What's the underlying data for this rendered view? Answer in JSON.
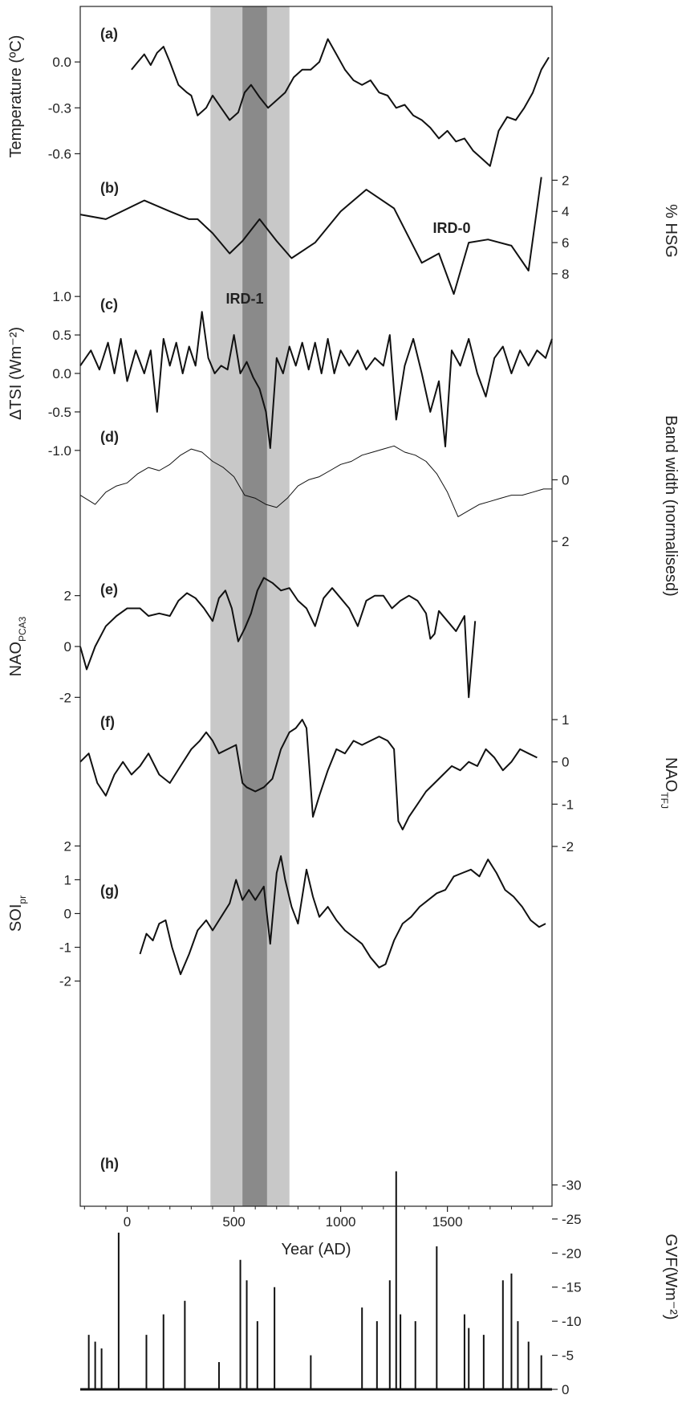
{
  "chart_data": {
    "type": "line",
    "xlabel": "Year (AD)",
    "xlim": [
      -220,
      1990
    ],
    "xticks": [
      "0",
      "500",
      "1000",
      "1500"
    ],
    "shading": [
      {
        "x0": 390,
        "x1": 760,
        "shade": "light",
        "color": "#c8c8c8"
      },
      {
        "x0": 540,
        "x1": 655,
        "shade": "dark",
        "color": "#8a8a8a"
      }
    ],
    "annotations": [
      "IRD-0",
      "IRD-1"
    ],
    "panels": [
      {
        "label": "(a)",
        "ylabel": "Temperature (ºC)",
        "axis_side": "left",
        "ylim": [
          -0.75,
          0.3
        ],
        "yticks": [
          "0.0",
          "-0.3",
          "-0.6"
        ],
        "x": [
          20,
          50,
          80,
          110,
          140,
          170,
          200,
          240,
          280,
          300,
          330,
          370,
          400,
          440,
          480,
          520,
          550,
          580,
          620,
          660,
          700,
          740,
          780,
          820,
          860,
          900,
          940,
          980,
          1020,
          1060,
          1100,
          1140,
          1180,
          1220,
          1260,
          1300,
          1340,
          1380,
          1420,
          1460,
          1500,
          1540,
          1580,
          1620,
          1660,
          1700,
          1740,
          1780,
          1820,
          1860,
          1900,
          1940,
          1975
        ],
        "values": [
          -0.05,
          0.0,
          0.05,
          -0.02,
          0.06,
          0.1,
          0.0,
          -0.15,
          -0.2,
          -0.22,
          -0.35,
          -0.3,
          -0.22,
          -0.3,
          -0.38,
          -0.33,
          -0.2,
          -0.15,
          -0.23,
          -0.3,
          -0.25,
          -0.2,
          -0.1,
          -0.05,
          -0.05,
          -0.0,
          0.15,
          0.05,
          -0.05,
          -0.12,
          -0.15,
          -0.12,
          -0.2,
          -0.22,
          -0.3,
          -0.28,
          -0.35,
          -0.38,
          -0.43,
          -0.5,
          -0.45,
          -0.52,
          -0.5,
          -0.58,
          -0.63,
          -0.68,
          -0.45,
          -0.36,
          -0.38,
          -0.3,
          -0.2,
          -0.05,
          0.03
        ]
      },
      {
        "label": "(b)",
        "ylabel": "% HSG",
        "axis_side": "right",
        "ylim": [
          9.5,
          1
        ],
        "inverted": true,
        "yticks": [
          "2",
          "4",
          "6",
          "8"
        ],
        "x": [
          -220,
          -100,
          80,
          200,
          290,
          330,
          400,
          480,
          540,
          620,
          700,
          770,
          880,
          1000,
          1120,
          1250,
          1380,
          1460,
          1530,
          1600,
          1690,
          1800,
          1880,
          1940
        ],
        "values": [
          4.2,
          4.5,
          3.3,
          4.0,
          4.5,
          4.5,
          5.4,
          6.7,
          5.9,
          4.5,
          5.9,
          7.0,
          6.0,
          4.0,
          2.6,
          3.8,
          7.3,
          6.7,
          9.3,
          6.0,
          5.8,
          6.2,
          7.8,
          1.8
        ]
      },
      {
        "label": "(c)",
        "ylabel": "ΔTSI (Wm⁻²)",
        "axis_side": "left",
        "ylim": [
          -1.2,
          1.2
        ],
        "yticks": [
          "1.0",
          "0.5",
          "0.0",
          "-0.5",
          "-1.0"
        ],
        "x": [
          -220,
          -170,
          -130,
          -90,
          -60,
          -30,
          0,
          40,
          80,
          110,
          140,
          170,
          200,
          230,
          260,
          290,
          320,
          350,
          380,
          410,
          440,
          470,
          500,
          530,
          560,
          590,
          620,
          650,
          670,
          700,
          730,
          760,
          790,
          820,
          850,
          880,
          910,
          940,
          970,
          1000,
          1040,
          1080,
          1120,
          1160,
          1200,
          1230,
          1260,
          1300,
          1340,
          1380,
          1420,
          1460,
          1490,
          1520,
          1560,
          1600,
          1640,
          1680,
          1720,
          1760,
          1800,
          1840,
          1880,
          1920,
          1960,
          1990
        ],
        "values": [
          0.1,
          0.3,
          0.05,
          0.4,
          0.0,
          0.45,
          -0.1,
          0.3,
          0.0,
          0.3,
          -0.5,
          0.45,
          0.1,
          0.4,
          0.0,
          0.35,
          0.1,
          0.8,
          0.2,
          0.0,
          0.1,
          0.05,
          0.5,
          0.0,
          0.15,
          -0.05,
          -0.2,
          -0.5,
          -0.97,
          0.2,
          0.0,
          0.35,
          0.1,
          0.4,
          0.05,
          0.4,
          0.0,
          0.45,
          0.0,
          0.3,
          0.1,
          0.3,
          0.05,
          0.2,
          0.1,
          0.5,
          -0.6,
          0.1,
          0.45,
          0.0,
          -0.5,
          -0.1,
          -0.95,
          0.3,
          0.1,
          0.45,
          0.0,
          -0.3,
          0.2,
          0.35,
          0.0,
          0.3,
          0.1,
          0.3,
          0.2,
          0.45
        ]
      },
      {
        "label": "(d)",
        "ylabel": "Band width (normalisesd)",
        "axis_side": "right",
        "ylim": [
          3.2,
          -1.5
        ],
        "inverted": true,
        "yticks": [
          "0",
          "2"
        ],
        "x": [
          -220,
          -150,
          -100,
          -50,
          0,
          50,
          100,
          150,
          200,
          250,
          300,
          350,
          400,
          450,
          500,
          550,
          600,
          650,
          700,
          750,
          800,
          850,
          900,
          950,
          1000,
          1050,
          1100,
          1150,
          1200,
          1250,
          1300,
          1350,
          1400,
          1450,
          1500,
          1550,
          1600,
          1650,
          1700,
          1750,
          1800,
          1850,
          1900,
          1950,
          1990
        ],
        "values": [
          0.5,
          0.8,
          0.4,
          0.2,
          0.1,
          -0.2,
          -0.4,
          -0.3,
          -0.5,
          -0.8,
          -1.0,
          -0.9,
          -0.6,
          -0.4,
          -0.1,
          0.5,
          0.6,
          0.8,
          0.9,
          0.6,
          0.2,
          0.0,
          -0.1,
          -0.3,
          -0.5,
          -0.6,
          -0.8,
          -0.9,
          -1.0,
          -1.1,
          -0.9,
          -0.8,
          -0.6,
          -0.2,
          0.4,
          1.2,
          1.0,
          0.8,
          0.7,
          0.6,
          0.5,
          0.5,
          0.4,
          0.3,
          0.3
        ]
      },
      {
        "label": "(e)",
        "ylabel": "NAO",
        "ylabel_sub": "PCA3",
        "axis_side": "left",
        "ylim": [
          -3,
          3
        ],
        "yticks": [
          "2",
          "0",
          "-2"
        ],
        "x": [
          -220,
          -190,
          -150,
          -100,
          -50,
          0,
          60,
          100,
          150,
          200,
          240,
          280,
          320,
          360,
          400,
          430,
          460,
          490,
          520,
          550,
          580,
          610,
          640,
          680,
          720,
          760,
          800,
          840,
          880,
          920,
          960,
          1000,
          1040,
          1080,
          1120,
          1160,
          1200,
          1240,
          1280,
          1320,
          1360,
          1400,
          1420,
          1440,
          1460,
          1500,
          1540,
          1580,
          1600,
          1630
        ],
        "values": [
          0.0,
          -0.9,
          0.0,
          0.8,
          1.2,
          1.5,
          1.5,
          1.2,
          1.3,
          1.2,
          1.8,
          2.1,
          1.9,
          1.5,
          1.0,
          1.9,
          2.2,
          1.5,
          0.2,
          0.7,
          1.3,
          2.2,
          2.7,
          2.5,
          2.2,
          2.3,
          1.8,
          1.5,
          0.8,
          1.9,
          2.3,
          1.9,
          1.5,
          0.8,
          1.8,
          2.0,
          2.0,
          1.5,
          1.8,
          2.0,
          1.8,
          1.3,
          0.3,
          0.5,
          1.4,
          1.0,
          0.6,
          1.2,
          -2.0,
          1.0
        ]
      },
      {
        "label": "(f)",
        "ylabel": "NAO",
        "ylabel_sub": "TFJ",
        "axis_side": "right",
        "ylim": [
          -2.4,
          1.4
        ],
        "yticks": [
          "1",
          "0",
          "-1",
          "-2"
        ],
        "x": [
          -220,
          -180,
          -140,
          -100,
          -60,
          -20,
          20,
          60,
          100,
          150,
          200,
          250,
          300,
          340,
          370,
          400,
          430,
          470,
          510,
          540,
          560,
          600,
          640,
          680,
          720,
          760,
          790,
          820,
          840,
          870,
          900,
          940,
          980,
          1020,
          1060,
          1100,
          1140,
          1180,
          1220,
          1250,
          1270,
          1290,
          1320,
          1360,
          1400,
          1440,
          1480,
          1520,
          1560,
          1600,
          1640,
          1680,
          1720,
          1760,
          1800,
          1840,
          1880,
          1920
        ],
        "values": [
          0.0,
          0.2,
          -0.5,
          -0.8,
          -0.3,
          0.0,
          -0.3,
          -0.1,
          0.2,
          -0.3,
          -0.5,
          -0.1,
          0.3,
          0.5,
          0.7,
          0.5,
          0.2,
          0.3,
          0.4,
          -0.5,
          -0.6,
          -0.7,
          -0.6,
          -0.4,
          0.3,
          0.7,
          0.8,
          1.0,
          0.8,
          -1.3,
          -0.8,
          -0.2,
          0.3,
          0.2,
          0.5,
          0.4,
          0.5,
          0.6,
          0.5,
          0.3,
          -1.4,
          -1.6,
          -1.3,
          -1.0,
          -0.7,
          -0.5,
          -0.3,
          -0.1,
          -0.2,
          0.0,
          -0.1,
          0.3,
          0.1,
          -0.2,
          0.0,
          0.3,
          0.2,
          0.1
        ]
      },
      {
        "label": "(g)",
        "ylabel": "SOI",
        "ylabel_sub": "pr",
        "axis_side": "left",
        "ylim": [
          -2.2,
          2.2
        ],
        "yticks": [
          "2",
          "1",
          "0",
          "-1",
          "-2"
        ],
        "x": [
          60,
          90,
          120,
          150,
          180,
          210,
          250,
          290,
          330,
          370,
          400,
          440,
          480,
          510,
          540,
          570,
          600,
          640,
          670,
          700,
          720,
          740,
          770,
          800,
          840,
          870,
          900,
          940,
          980,
          1020,
          1060,
          1100,
          1140,
          1180,
          1210,
          1250,
          1290,
          1330,
          1370,
          1410,
          1450,
          1490,
          1530,
          1570,
          1610,
          1650,
          1690,
          1730,
          1770,
          1810,
          1850,
          1890,
          1930,
          1960
        ],
        "values": [
          -1.2,
          -0.6,
          -0.8,
          -0.3,
          -0.2,
          -1.0,
          -1.8,
          -1.2,
          -0.5,
          -0.2,
          -0.5,
          -0.1,
          0.3,
          1.0,
          0.4,
          0.7,
          0.4,
          0.8,
          -0.9,
          1.2,
          1.7,
          1.0,
          0.2,
          -0.3,
          1.3,
          0.5,
          -0.1,
          0.2,
          -0.2,
          -0.5,
          -0.7,
          -0.9,
          -1.3,
          -1.6,
          -1.5,
          -0.8,
          -0.3,
          -0.1,
          0.2,
          0.4,
          0.6,
          0.7,
          1.1,
          1.2,
          1.3,
          1.1,
          1.6,
          1.2,
          0.7,
          0.5,
          0.2,
          -0.2,
          -0.4,
          -0.3
        ]
      },
      {
        "label": "(h)",
        "ylabel": "GVF(Wm⁻²)",
        "axis_side": "right",
        "ylim": [
          0,
          -33
        ],
        "inverted": true,
        "yticks": [
          "0",
          "-5",
          "-10",
          "-15",
          "-20",
          "-25",
          "-30"
        ],
        "x": [
          -180,
          -150,
          -120,
          -40,
          90,
          170,
          270,
          430,
          530,
          560,
          610,
          690,
          860,
          1100,
          1170,
          1230,
          1260,
          1280,
          1350,
          1450,
          1580,
          1600,
          1670,
          1760,
          1800,
          1830,
          1880,
          1940
        ],
        "values": [
          -8,
          -7,
          -6,
          -23,
          -8,
          -11,
          -13,
          -4,
          -19,
          -16,
          -10,
          -15,
          -5,
          -12,
          -10,
          -16,
          -32,
          -11,
          -10,
          -21,
          -11,
          -9,
          -8,
          -16,
          -17,
          -10,
          -7,
          -5
        ]
      }
    ]
  }
}
